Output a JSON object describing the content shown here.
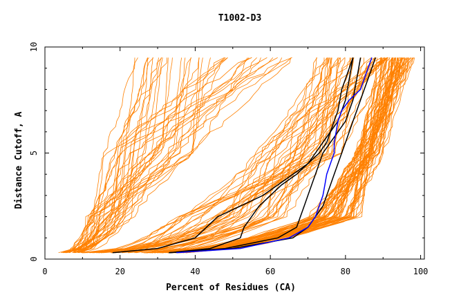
{
  "chart_data": {
    "type": "line",
    "title": "T1002-D3",
    "xlabel": "Percent of Residues (CA)",
    "ylabel": "Distance Cutoff, A",
    "xlim": [
      0,
      101
    ],
    "ylim": [
      0,
      10
    ],
    "x_ticks": [
      0,
      20,
      40,
      60,
      80,
      100
    ],
    "x_tick_labels": [
      "0",
      "20",
      "40",
      "60",
      "80",
      "100"
    ],
    "y_ticks": [
      0,
      5,
      10
    ],
    "y_tick_labels": [
      "0",
      "5",
      "10"
    ],
    "grid": false,
    "y_values": [
      0.3,
      0.5,
      1,
      1.5,
      2,
      2.5,
      3,
      3.5,
      4,
      4.5,
      5,
      5.5,
      6,
      6.5,
      7,
      7.5,
      8,
      8.5,
      9,
      9.5
    ],
    "colors": {
      "background": "#ffffff",
      "axes": "#000000",
      "models": "#ff8000",
      "highlight_black": "#000000",
      "highlight_blue": "#0000ff"
    },
    "series": [
      {
        "color": "#000000",
        "x": [
          18,
          30,
          40,
          43,
          46,
          52,
          58,
          62,
          66,
          70,
          73,
          75,
          76,
          77,
          78,
          78.5,
          79,
          80,
          81,
          82
        ]
      },
      {
        "color": "#000000",
        "x": [
          33,
          44,
          52,
          53,
          55,
          57,
          60,
          63,
          67,
          70,
          72,
          74,
          76,
          78,
          79,
          80,
          80.5,
          81,
          81.5,
          82
        ]
      },
      {
        "color": "#000000",
        "x": [
          33,
          48,
          62,
          67,
          68,
          69,
          70,
          71,
          72,
          73,
          74,
          76,
          78,
          80,
          81,
          82,
          82.5,
          83,
          83.5,
          84
        ]
      },
      {
        "color": "#000000",
        "x": [
          33,
          50,
          66,
          70,
          72,
          74,
          75,
          76,
          77,
          78,
          79,
          80,
          81,
          82,
          83,
          84,
          85,
          86,
          87,
          88
        ]
      },
      {
        "color": "#0000ff",
        "x": [
          35,
          52,
          65,
          70,
          72,
          73,
          74,
          74.5,
          75,
          76,
          77,
          77,
          77.5,
          78,
          79,
          81,
          84,
          85,
          86,
          87
        ]
      }
    ]
  }
}
